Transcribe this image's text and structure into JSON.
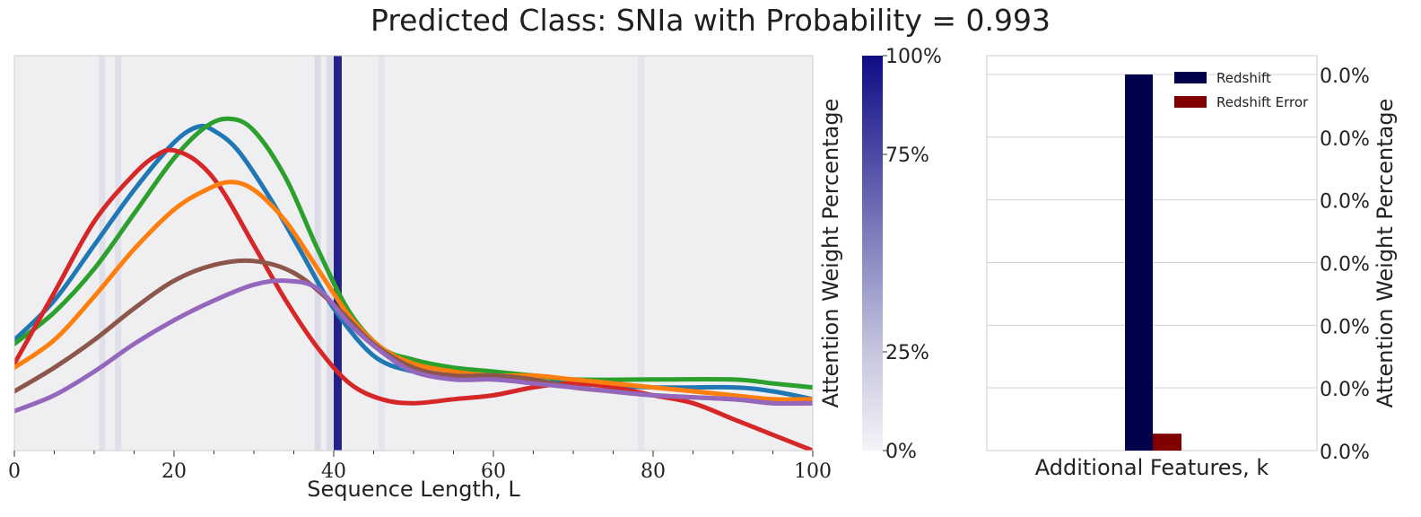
{
  "title": "Predicted Class: SNIa with Probability = 0.993",
  "chart_data": [
    {
      "type": "line",
      "xlabel": "Sequence Length, L",
      "ylabel": "",
      "xlim": [
        0,
        100
      ],
      "x_ticks": [
        0,
        20,
        40,
        60,
        80,
        100
      ],
      "x_tick_labels": [
        "0",
        "20",
        "40",
        "60",
        "80",
        "100"
      ],
      "y_visible": false,
      "grid": false,
      "attention_bands": [
        {
          "x": 11,
          "weight": 0.03
        },
        {
          "x": 13,
          "weight": 0.03
        },
        {
          "x": 38,
          "weight": 0.04
        },
        {
          "x": 39.5,
          "weight": 0.04
        },
        {
          "x": 40.5,
          "weight": 1.0
        },
        {
          "x": 46,
          "weight": 0.02
        },
        {
          "x": 78.5,
          "weight": 0.02
        }
      ],
      "series": [
        {
          "color": "#1f77b4",
          "x": [
            0,
            5,
            10,
            15,
            20,
            23,
            25,
            28,
            32,
            36,
            40,
            45,
            50,
            55,
            60,
            70,
            80,
            90,
            95,
            100
          ],
          "y": [
            0.28,
            0.38,
            0.52,
            0.66,
            0.78,
            0.82,
            0.81,
            0.76,
            0.64,
            0.5,
            0.36,
            0.24,
            0.2,
            0.19,
            0.18,
            0.17,
            0.16,
            0.16,
            0.15,
            0.13
          ]
        },
        {
          "color": "#2ca02c",
          "x": [
            0,
            5,
            10,
            15,
            20,
            24,
            27,
            30,
            34,
            38,
            42,
            46,
            50,
            55,
            60,
            65,
            70,
            80,
            90,
            95,
            100
          ],
          "y": [
            0.27,
            0.35,
            0.46,
            0.6,
            0.74,
            0.82,
            0.84,
            0.81,
            0.69,
            0.51,
            0.35,
            0.26,
            0.23,
            0.21,
            0.2,
            0.19,
            0.18,
            0.18,
            0.18,
            0.17,
            0.16
          ]
        },
        {
          "color": "#d62728",
          "x": [
            0,
            5,
            10,
            15,
            18,
            20,
            23,
            26,
            30,
            34,
            38,
            42,
            46,
            50,
            55,
            60,
            65,
            70,
            75,
            80,
            85,
            90,
            95,
            100
          ],
          "y": [
            0.22,
            0.4,
            0.58,
            0.7,
            0.75,
            0.76,
            0.73,
            0.66,
            0.52,
            0.38,
            0.26,
            0.17,
            0.13,
            0.12,
            0.13,
            0.14,
            0.16,
            0.17,
            0.16,
            0.14,
            0.12,
            0.08,
            0.04,
            0.0
          ]
        },
        {
          "color": "#ff7f0e",
          "x": [
            0,
            5,
            10,
            15,
            20,
            24,
            27,
            30,
            34,
            38,
            42,
            46,
            50,
            55,
            60,
            65,
            70,
            80,
            90,
            95,
            100
          ],
          "y": [
            0.21,
            0.28,
            0.39,
            0.51,
            0.61,
            0.66,
            0.68,
            0.66,
            0.58,
            0.46,
            0.34,
            0.26,
            0.22,
            0.2,
            0.19,
            0.19,
            0.18,
            0.16,
            0.14,
            0.13,
            0.13
          ]
        },
        {
          "color": "#8c564b",
          "x": [
            0,
            5,
            10,
            15,
            20,
            25,
            30,
            35,
            40,
            45,
            50,
            55,
            60,
            65,
            70,
            75,
            80,
            90,
            95,
            100
          ],
          "y": [
            0.15,
            0.21,
            0.28,
            0.36,
            0.43,
            0.47,
            0.48,
            0.45,
            0.37,
            0.27,
            0.21,
            0.19,
            0.19,
            0.18,
            0.16,
            0.15,
            0.14,
            0.13,
            0.12,
            0.12
          ]
        },
        {
          "color": "#9467bd",
          "x": [
            0,
            5,
            10,
            15,
            20,
            25,
            30,
            34,
            38,
            42,
            46,
            50,
            55,
            60,
            65,
            70,
            80,
            90,
            95,
            100
          ],
          "y": [
            0.1,
            0.14,
            0.2,
            0.27,
            0.33,
            0.38,
            0.42,
            0.43,
            0.41,
            0.32,
            0.25,
            0.2,
            0.18,
            0.18,
            0.17,
            0.16,
            0.14,
            0.13,
            0.12,
            0.12
          ]
        }
      ]
    },
    {
      "type": "colorbar",
      "ylabel": "Attention Weight Percentage",
      "tick_labels": [
        "0%",
        "25%",
        "75%",
        "100%"
      ],
      "tick_values": [
        0,
        0.25,
        0.75,
        1.0
      ],
      "color_low": "#ececf4",
      "color_high": "#0d0c86"
    },
    {
      "type": "bar",
      "categories": [
        ""
      ],
      "xlabel": "Additional Features, k",
      "ylabel": "Attention Weight Percentage",
      "y_tick_labels": [
        "0.0%",
        "0.0%",
        "0.0%",
        "0.0%",
        "0.0%",
        "0.0%",
        "0.0%"
      ],
      "ylim": [
        0,
        1.05
      ],
      "grid": true,
      "legend": "top-right",
      "series": [
        {
          "name": "Redshift",
          "color": "#00004c",
          "values": [
            1.0
          ]
        },
        {
          "name": "Redshift Error",
          "color": "#800000",
          "values": [
            0.045
          ]
        }
      ]
    }
  ]
}
